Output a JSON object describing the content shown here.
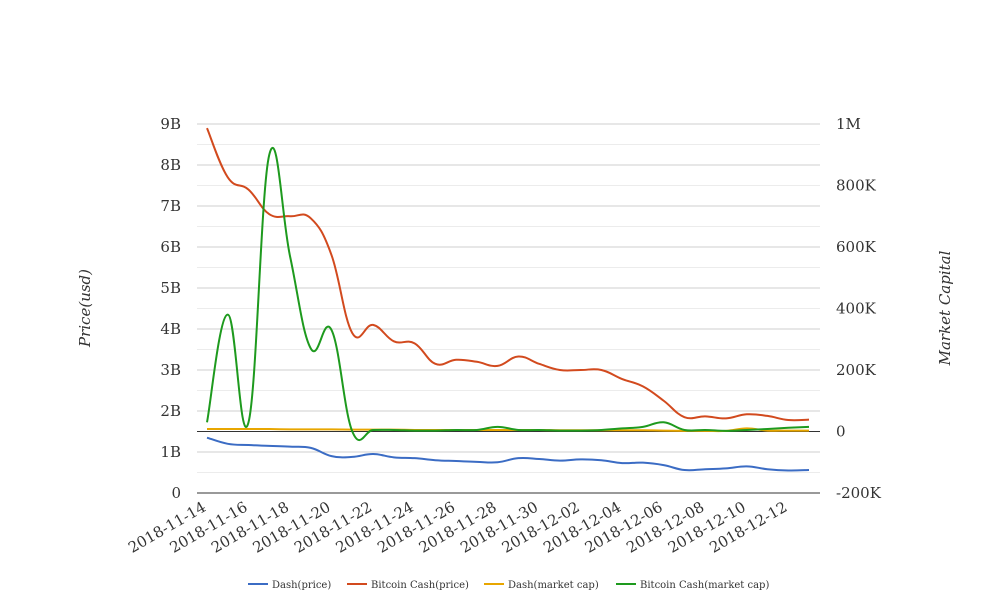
{
  "chart_data": {
    "type": "line",
    "x": [
      "2018-11-14",
      "2018-11-15",
      "2018-11-16",
      "2018-11-17",
      "2018-11-18",
      "2018-11-19",
      "2018-11-20",
      "2018-11-21",
      "2018-11-22",
      "2018-11-23",
      "2018-11-24",
      "2018-11-25",
      "2018-11-26",
      "2018-11-27",
      "2018-11-28",
      "2018-11-29",
      "2018-11-30",
      "2018-12-01",
      "2018-12-02",
      "2018-12-03",
      "2018-12-04",
      "2018-12-05",
      "2018-12-06",
      "2018-12-07",
      "2018-12-08",
      "2018-12-09",
      "2018-12-10",
      "2018-12-11",
      "2018-12-12",
      "2018-12-13"
    ],
    "xticks": [
      "2018-11-14",
      "2018-11-16",
      "2018-11-18",
      "2018-11-20",
      "2018-11-22",
      "2018-11-24",
      "2018-11-26",
      "2018-11-28",
      "2018-11-30",
      "2018-12-02",
      "2018-12-04",
      "2018-12-06",
      "2018-12-08",
      "2018-12-10",
      "2018-12-12"
    ],
    "ylabel_left": "Price(usd)",
    "ylabel_right": "Market Capital",
    "yticks_left": [
      "0",
      "1B",
      "2B",
      "3B",
      "4B",
      "5B",
      "6B",
      "7B",
      "8B",
      "9B"
    ],
    "ylim_left": [
      0,
      9000000000
    ],
    "yticks_right": [
      "-200K",
      "0",
      "200K",
      "400K",
      "600K",
      "800K",
      "1M"
    ],
    "ylim_right": [
      -200000,
      1000000
    ],
    "grid": true,
    "legend_position": "bottom",
    "series": [
      {
        "name": "Dash(price)",
        "axis": "left",
        "color": "#3b6cc4",
        "values": [
          1350000000,
          1200000000,
          1170000000,
          1150000000,
          1130000000,
          1100000000,
          900000000,
          880000000,
          950000000,
          870000000,
          850000000,
          800000000,
          780000000,
          760000000,
          750000000,
          850000000,
          830000000,
          790000000,
          820000000,
          800000000,
          730000000,
          740000000,
          680000000,
          560000000,
          580000000,
          600000000,
          650000000,
          580000000,
          550000000,
          560000000
        ]
      },
      {
        "name": "Bitcoin Cash(price)",
        "axis": "left",
        "color": "#d24a1e",
        "values": [
          8900000000,
          7700000000,
          7400000000,
          6800000000,
          6750000000,
          6700000000,
          5800000000,
          3900000000,
          4100000000,
          3700000000,
          3650000000,
          3150000000,
          3250000000,
          3200000000,
          3100000000,
          3330000000,
          3150000000,
          3000000000,
          3000000000,
          3000000000,
          2780000000,
          2600000000,
          2250000000,
          1850000000,
          1870000000,
          1820000000,
          1920000000,
          1880000000,
          1780000000,
          1790000000
        ]
      },
      {
        "name": "Dash(market cap)",
        "axis": "right",
        "color": "#e8a600",
        "values": [
          8000,
          8000,
          8000,
          8000,
          7000,
          7000,
          7000,
          6000,
          6000,
          6000,
          5000,
          5000,
          5000,
          5000,
          5000,
          5000,
          5000,
          4000,
          4000,
          4000,
          4000,
          4000,
          3000,
          2000,
          2000,
          2000,
          10000,
          3000,
          3000,
          3000
        ]
      },
      {
        "name": "Bitcoin Cash(market cap)",
        "axis": "right",
        "color": "#1e9a1e",
        "values": [
          30000,
          380000,
          30000,
          900000,
          570000,
          270000,
          330000,
          0,
          5000,
          5000,
          3000,
          3000,
          5000,
          5000,
          15000,
          5000,
          5000,
          3000,
          3000,
          5000,
          10000,
          15000,
          30000,
          5000,
          5000,
          2000,
          5000,
          8000,
          12000,
          15000
        ]
      }
    ]
  }
}
